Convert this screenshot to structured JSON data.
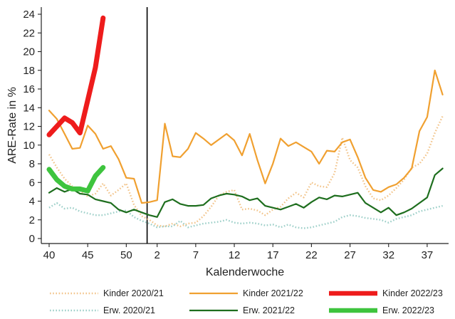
{
  "chart_data": {
    "type": "line",
    "xlabel": "Kalenderwoche",
    "ylabel": "ARE-Rate in %",
    "ylim": [
      0,
      24
    ],
    "yticks": [
      0,
      2,
      4,
      6,
      8,
      10,
      12,
      14,
      16,
      18,
      20,
      22,
      24
    ],
    "yticklabels": [
      "0",
      "2",
      "4",
      "6",
      "8",
      "10",
      "12",
      "14",
      "16",
      "18",
      "20",
      "22",
      "24"
    ],
    "x_index_range": [
      0,
      51.5
    ],
    "xticks_index": [
      0,
      5,
      10,
      14,
      19,
      24,
      29,
      34,
      39,
      44,
      49
    ],
    "xticklabels": [
      "40",
      "45",
      "50",
      "2",
      "7",
      "12",
      "17",
      "22",
      "27",
      "32",
      "37"
    ],
    "year_boundary_index": 12.7,
    "grid": false,
    "legend_position": "bottom",
    "series": [
      {
        "name": "Kinder 2020/21",
        "color": "#f2c48a",
        "style": "dotted",
        "width": 2.4,
        "values": [
          9.0,
          7.6,
          6.4,
          5.6,
          5.1,
          4.5,
          4.8,
          5.9,
          4.6,
          5.2,
          5.9,
          3.6,
          2.4,
          2.0,
          1.4,
          1.3,
          1.6,
          1.3,
          1.6,
          1.7,
          2.4,
          3.4,
          4.6,
          5.0,
          5.2,
          3.1,
          3.2,
          3.0,
          2.5,
          3.1,
          3.4,
          4.3,
          4.9,
          4.4,
          6.0,
          5.6,
          5.5,
          7.0,
          10.8,
          8.4,
          7.6,
          5.6,
          4.3,
          4.1,
          4.6,
          5.4,
          6.3,
          7.6,
          8.0,
          9.1,
          11.3,
          13.1
        ]
      },
      {
        "name": "Kinder 2021/22",
        "color": "#f0a030",
        "style": "solid",
        "width": 2.2,
        "values": [
          13.7,
          12.8,
          11.2,
          9.6,
          9.7,
          12.1,
          11.2,
          9.6,
          9.9,
          8.5,
          6.5,
          6.4,
          3.8,
          3.9,
          4.1,
          12.3,
          8.8,
          8.7,
          9.6,
          11.3,
          10.7,
          10.0,
          10.6,
          11.2,
          10.5,
          8.9,
          11.2,
          8.4,
          5.9,
          8.0,
          10.7,
          9.9,
          10.3,
          9.8,
          9.3,
          8.0,
          9.4,
          9.3,
          10.3,
          10.6,
          8.7,
          6.5,
          5.2,
          5.0,
          5.5,
          5.8,
          6.5,
          7.5,
          11.5,
          13.0,
          18.0,
          15.4
        ]
      },
      {
        "name": "Kinder 2022/23",
        "color": "#ee1c1c",
        "style": "solid",
        "width": 7,
        "values": [
          11.1,
          12.0,
          12.9,
          12.4,
          11.3,
          14.8,
          18.3,
          23.6
        ]
      },
      {
        "name": "Erw. 2020/21",
        "color": "#9ccfc8",
        "style": "dotted",
        "width": 2.4,
        "values": [
          3.3,
          3.8,
          3.2,
          3.3,
          2.9,
          2.7,
          2.5,
          2.5,
          2.7,
          2.9,
          3.0,
          2.3,
          1.9,
          1.6,
          1.2,
          1.3,
          1.3,
          1.9,
          1.2,
          1.4,
          1.6,
          1.7,
          1.8,
          2.0,
          1.7,
          1.6,
          1.7,
          1.6,
          1.4,
          1.5,
          1.2,
          1.5,
          1.2,
          1.1,
          1.2,
          1.4,
          1.6,
          1.8,
          2.3,
          2.5,
          2.4,
          2.2,
          2.1,
          2.0,
          1.7,
          2.1,
          2.3,
          2.5,
          2.9,
          3.1,
          3.3,
          3.5
        ]
      },
      {
        "name": "Erw. 2021/22",
        "color": "#1e6e1e",
        "style": "solid",
        "width": 2.2,
        "values": [
          4.9,
          5.4,
          5.0,
          5.3,
          4.8,
          4.7,
          4.2,
          4.0,
          3.8,
          3.1,
          2.8,
          3.1,
          2.8,
          2.5,
          2.3,
          3.9,
          4.2,
          3.7,
          3.5,
          3.5,
          3.6,
          4.3,
          4.6,
          4.8,
          4.7,
          4.5,
          4.1,
          4.3,
          3.5,
          3.3,
          3.1,
          3.4,
          3.7,
          3.3,
          3.9,
          4.4,
          4.2,
          4.6,
          4.5,
          4.7,
          4.9,
          3.8,
          3.3,
          2.8,
          3.3,
          2.5,
          2.8,
          3.2,
          3.8,
          4.4,
          6.8,
          7.5
        ]
      },
      {
        "name": "Erw. 2022/23",
        "color": "#3ec43e",
        "style": "solid",
        "width": 7,
        "values": [
          7.4,
          6.3,
          5.6,
          5.3,
          5.3,
          5.1,
          6.7,
          7.6
        ]
      }
    ]
  },
  "legend_layout": [
    [
      "Kinder 2020/21",
      "Kinder 2021/22",
      "Kinder 2022/23"
    ],
    [
      "Erw. 2020/21",
      "Erw. 2021/22",
      "Erw. 2022/23"
    ]
  ]
}
